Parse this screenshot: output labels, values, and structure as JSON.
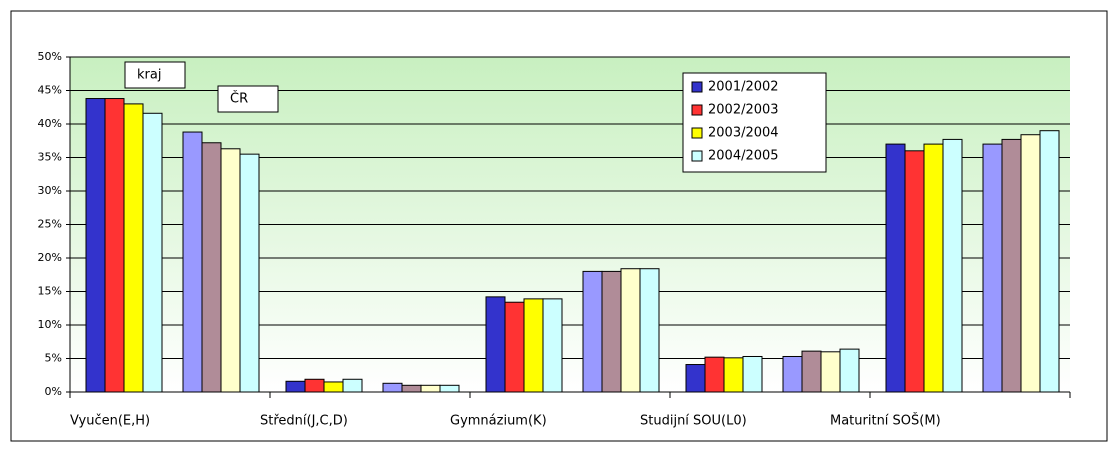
{
  "chart_data": {
    "type": "bar",
    "categories": [
      "Vyučen(E,H)",
      "Střední(J,C,D)",
      "Gymnázium(K)",
      "Studijní SOU(L0)",
      "Maturitní SOŠ(M)"
    ],
    "subgroups": [
      "kraj",
      "ČR"
    ],
    "series": [
      {
        "name": "2001/2002",
        "color": "#3333cc",
        "light_color": "#9999ff",
        "values": [
          [
            43.8,
            38.8
          ],
          [
            1.6,
            1.3
          ],
          [
            14.2,
            18.0
          ],
          [
            4.1,
            5.3
          ],
          [
            37.0,
            37.0
          ]
        ]
      },
      {
        "name": "2002/2003",
        "color": "#ff3333",
        "light_color": "#b08c98",
        "values": [
          [
            43.8,
            37.2
          ],
          [
            1.9,
            1.0
          ],
          [
            13.4,
            18.0
          ],
          [
            5.2,
            6.1
          ],
          [
            36.0,
            37.7
          ]
        ]
      },
      {
        "name": "2003/2004",
        "color": "#ffff00",
        "light_color": "#ffffcc",
        "values": [
          [
            43.0,
            36.3
          ],
          [
            1.5,
            1.0
          ],
          [
            13.9,
            18.4
          ],
          [
            5.1,
            6.0
          ],
          [
            37.0,
            38.4
          ]
        ]
      },
      {
        "name": "2004/2005",
        "color": "#ccffff",
        "light_color": "#ccffff",
        "values": [
          [
            41.6,
            35.5
          ],
          [
            1.9,
            1.0
          ],
          [
            13.9,
            18.4
          ],
          [
            5.3,
            6.4
          ],
          [
            37.7,
            39.0
          ]
        ]
      }
    ],
    "ylim": [
      0,
      50
    ],
    "yticks": [
      {
        "value": 0,
        "label": "0%"
      },
      {
        "value": 5,
        "label": "5%"
      },
      {
        "value": 10,
        "label": "10%"
      },
      {
        "value": 15,
        "label": "15%"
      },
      {
        "value": 20,
        "label": "20%"
      },
      {
        "value": 25,
        "label": "25%"
      },
      {
        "value": 30,
        "label": "30%"
      },
      {
        "value": 35,
        "label": "35%"
      },
      {
        "value": 40,
        "label": "40%"
      },
      {
        "value": 45,
        "label": "45%"
      },
      {
        "value": 50,
        "label": "50%"
      }
    ],
    "grid": true
  }
}
